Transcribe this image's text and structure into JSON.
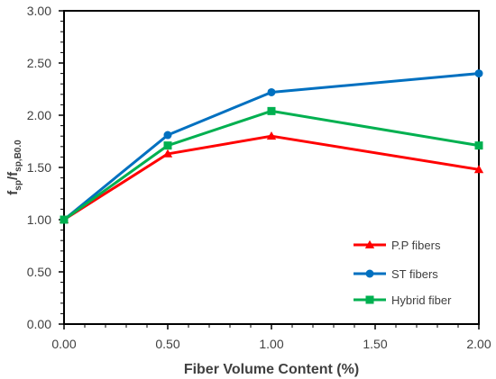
{
  "chart_data": {
    "type": "line",
    "xlabel": "Fiber Volume Content (%)",
    "ylabel": {
      "parts": [
        {
          "text": "f",
          "sub": false
        },
        {
          "text": "sp",
          "sub": true
        },
        {
          "text": "/f",
          "sub": false
        },
        {
          "text": "sp,B0.0",
          "sub": true
        }
      ]
    },
    "x": [
      0,
      0.5,
      1.0,
      2.0
    ],
    "xlim": [
      0,
      2
    ],
    "ylim": [
      0,
      3
    ],
    "xticks": [
      0,
      0.5,
      1.0,
      1.5,
      2.0
    ],
    "xtick_labels": [
      "0.00",
      "0.50",
      "1.00",
      "1.50",
      "2.00"
    ],
    "yticks": [
      0,
      0.5,
      1.0,
      1.5,
      2.0,
      2.5,
      3.0
    ],
    "ytick_labels": [
      "0.00",
      "0.50",
      "1.00",
      "1.50",
      "2.00",
      "2.50",
      "3.00"
    ],
    "grid": false,
    "legend_position": "bottom-right",
    "series": [
      {
        "name": "P.P fibers",
        "values": [
          1.0,
          1.63,
          1.8,
          1.48
        ],
        "color": "#ff0000",
        "marker": "triangle"
      },
      {
        "name": "ST fibers",
        "values": [
          1.0,
          1.81,
          2.22,
          2.4
        ],
        "color": "#0070c0",
        "marker": "circle"
      },
      {
        "name": "Hybrid fiber",
        "values": [
          1.0,
          1.71,
          2.04,
          1.71
        ],
        "color": "#00b050",
        "marker": "square"
      }
    ]
  }
}
